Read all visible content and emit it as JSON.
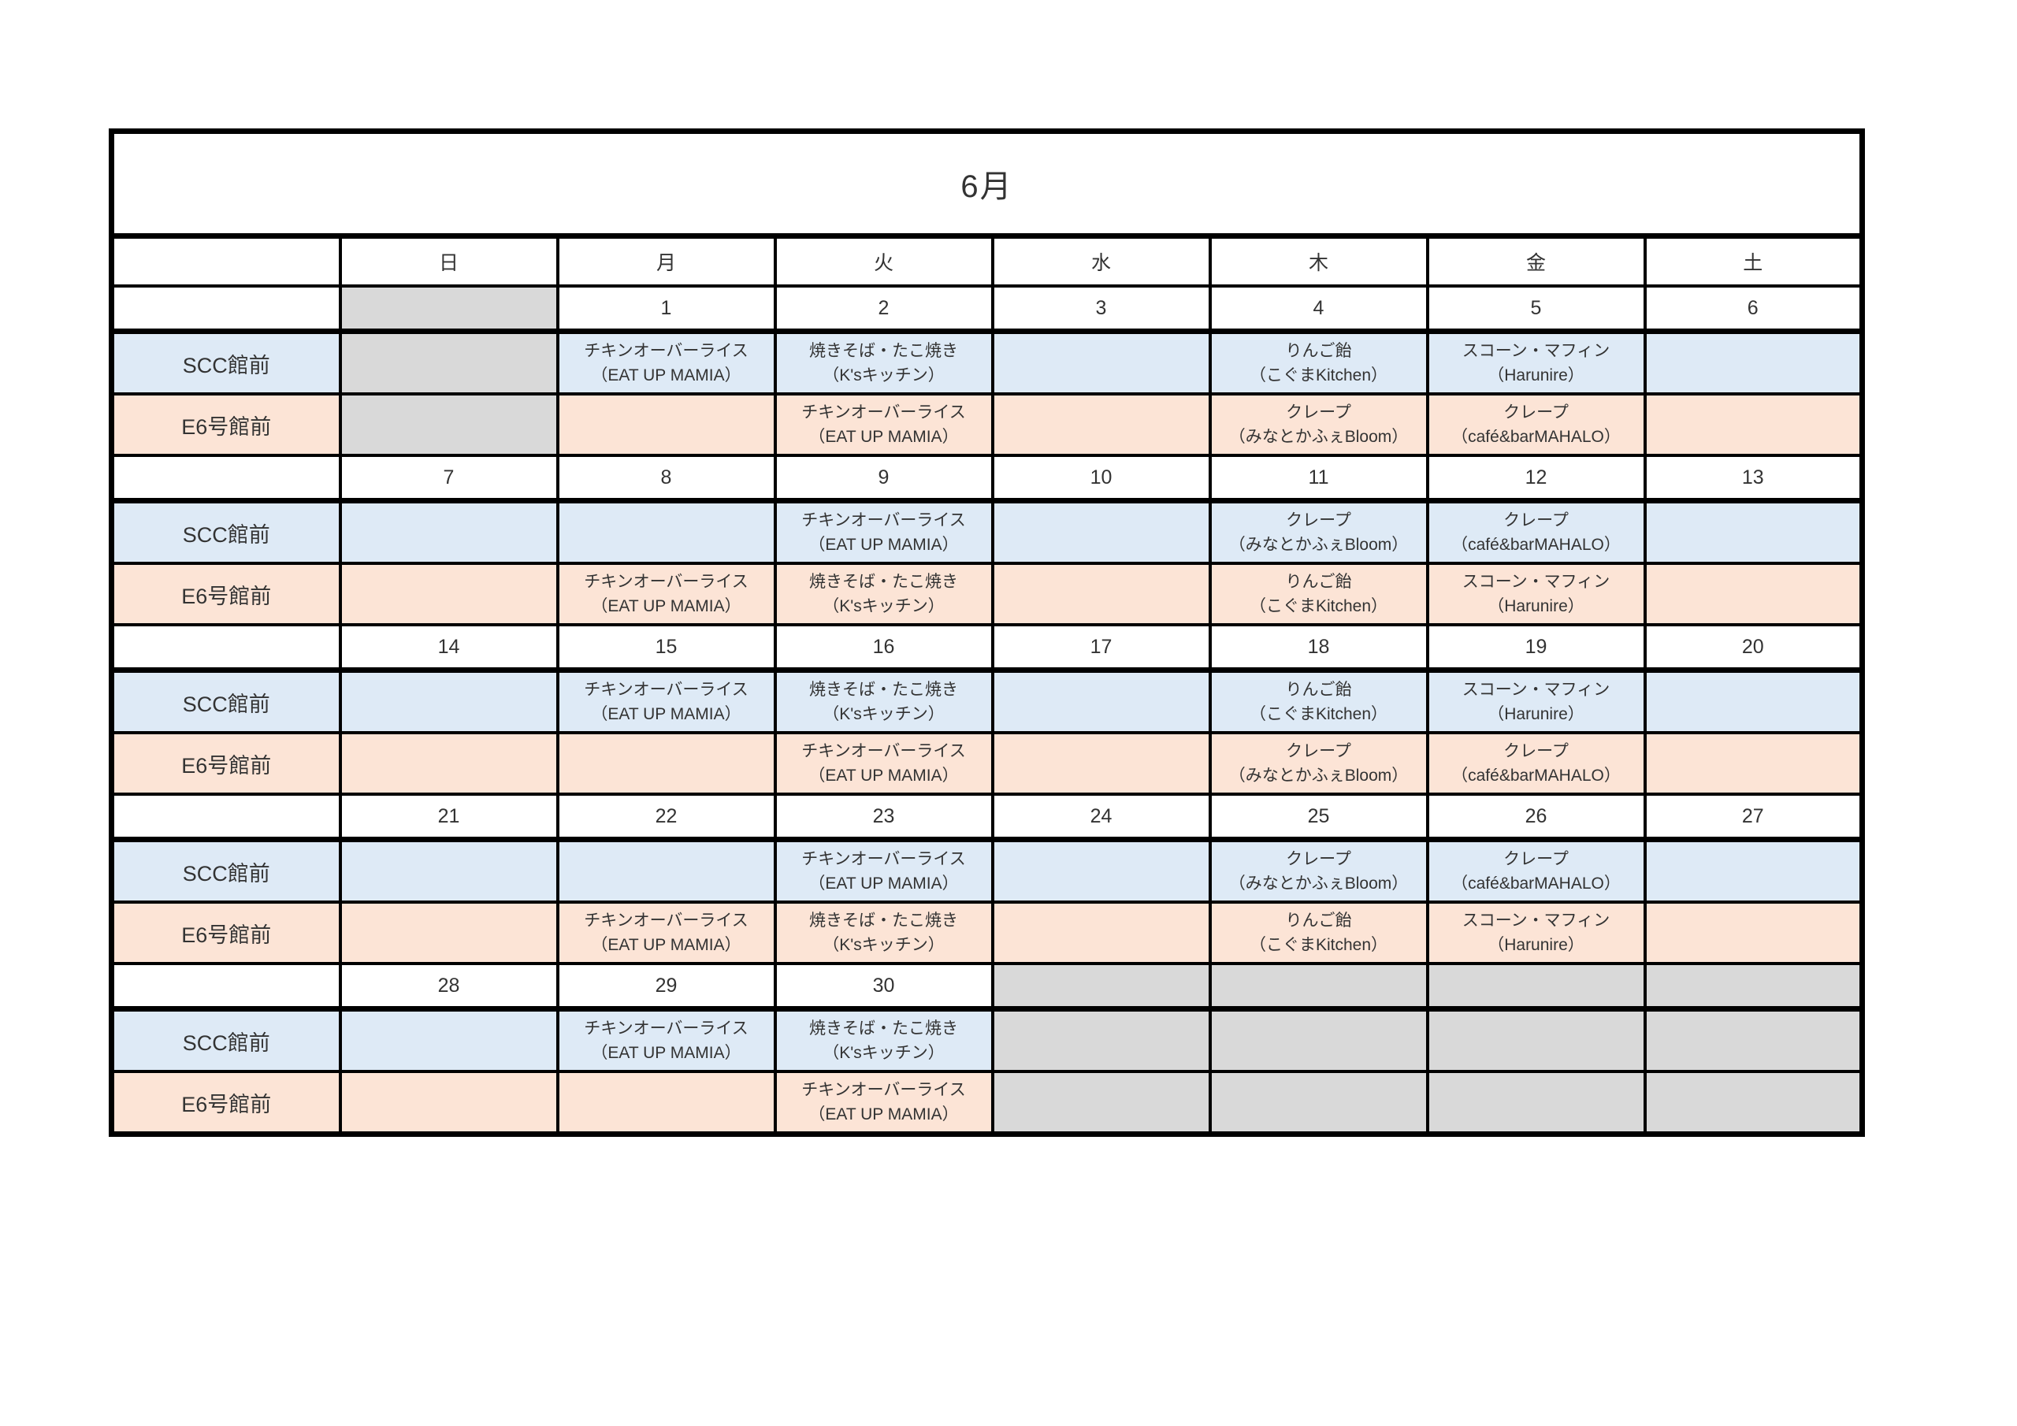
{
  "title": "6月",
  "weekday_headers": [
    "日",
    "月",
    "火",
    "水",
    "木",
    "金",
    "土"
  ],
  "row_labels": {
    "scc": "SCC館前",
    "e6": "E6号館前"
  },
  "colors": {
    "scc_row_bg": "#DEEAF6",
    "e6_row_bg": "#FCE4D6",
    "out_of_month_bg": "#D9D9D9",
    "grid_border": "#000000"
  },
  "weeks": [
    {
      "dates": [
        "",
        "1",
        "2",
        "3",
        "4",
        "5",
        "6"
      ],
      "out_of_month": [
        true,
        false,
        false,
        false,
        false,
        false,
        false
      ],
      "scc": [
        null,
        [
          "チキンオーバーライス",
          "（EAT UP MAMIA）"
        ],
        [
          "焼きそば・たこ焼き",
          "（K'sキッチン）"
        ],
        null,
        [
          "りんご飴",
          "（こぐまKitchen）"
        ],
        [
          "スコーン・マフィン",
          "（Harunire）"
        ],
        null
      ],
      "e6": [
        null,
        null,
        [
          "チキンオーバーライス",
          "（EAT UP MAMIA）"
        ],
        null,
        [
          "クレープ",
          "（みなとかふぇBloom）"
        ],
        [
          "クレープ",
          "（café&barMAHALO）"
        ],
        null
      ]
    },
    {
      "dates": [
        "7",
        "8",
        "9",
        "10",
        "11",
        "12",
        "13"
      ],
      "out_of_month": [
        false,
        false,
        false,
        false,
        false,
        false,
        false
      ],
      "scc": [
        null,
        null,
        [
          "チキンオーバーライス",
          "（EAT UP MAMIA）"
        ],
        null,
        [
          "クレープ",
          "（みなとかふぇBloom）"
        ],
        [
          "クレープ",
          "（café&barMAHALO）"
        ],
        null
      ],
      "e6": [
        null,
        [
          "チキンオーバーライス",
          "（EAT UP MAMIA）"
        ],
        [
          "焼きそば・たこ焼き",
          "（K'sキッチン）"
        ],
        null,
        [
          "りんご飴",
          "（こぐまKitchen）"
        ],
        [
          "スコーン・マフィン",
          "（Harunire）"
        ],
        null
      ]
    },
    {
      "dates": [
        "14",
        "15",
        "16",
        "17",
        "18",
        "19",
        "20"
      ],
      "out_of_month": [
        false,
        false,
        false,
        false,
        false,
        false,
        false
      ],
      "scc": [
        null,
        [
          "チキンオーバーライス",
          "（EAT UP MAMIA）"
        ],
        [
          "焼きそば・たこ焼き",
          "（K'sキッチン）"
        ],
        null,
        [
          "りんご飴",
          "（こぐまKitchen）"
        ],
        [
          "スコーン・マフィン",
          "（Harunire）"
        ],
        null
      ],
      "e6": [
        null,
        null,
        [
          "チキンオーバーライス",
          "（EAT UP MAMIA）"
        ],
        null,
        [
          "クレープ",
          "（みなとかふぇBloom）"
        ],
        [
          "クレープ",
          "（café&barMAHALO）"
        ],
        null
      ]
    },
    {
      "dates": [
        "21",
        "22",
        "23",
        "24",
        "25",
        "26",
        "27"
      ],
      "out_of_month": [
        false,
        false,
        false,
        false,
        false,
        false,
        false
      ],
      "scc": [
        null,
        null,
        [
          "チキンオーバーライス",
          "（EAT UP MAMIA）"
        ],
        null,
        [
          "クレープ",
          "（みなとかふぇBloom）"
        ],
        [
          "クレープ",
          "（café&barMAHALO）"
        ],
        null
      ],
      "e6": [
        null,
        [
          "チキンオーバーライス",
          "（EAT UP MAMIA）"
        ],
        [
          "焼きそば・たこ焼き",
          "（K'sキッチン）"
        ],
        null,
        [
          "りんご飴",
          "（こぐまKitchen）"
        ],
        [
          "スコーン・マフィン",
          "（Harunire）"
        ],
        null
      ]
    },
    {
      "dates": [
        "28",
        "29",
        "30",
        "",
        "",
        "",
        ""
      ],
      "out_of_month": [
        false,
        false,
        false,
        true,
        true,
        true,
        true
      ],
      "scc": [
        null,
        [
          "チキンオーバーライス",
          "（EAT UP MAMIA）"
        ],
        [
          "焼きそば・たこ焼き",
          "（K'sキッチン）"
        ],
        null,
        null,
        null,
        null
      ],
      "e6": [
        null,
        null,
        [
          "チキンオーバーライス",
          "（EAT UP MAMIA）"
        ],
        null,
        null,
        null,
        null
      ]
    }
  ]
}
